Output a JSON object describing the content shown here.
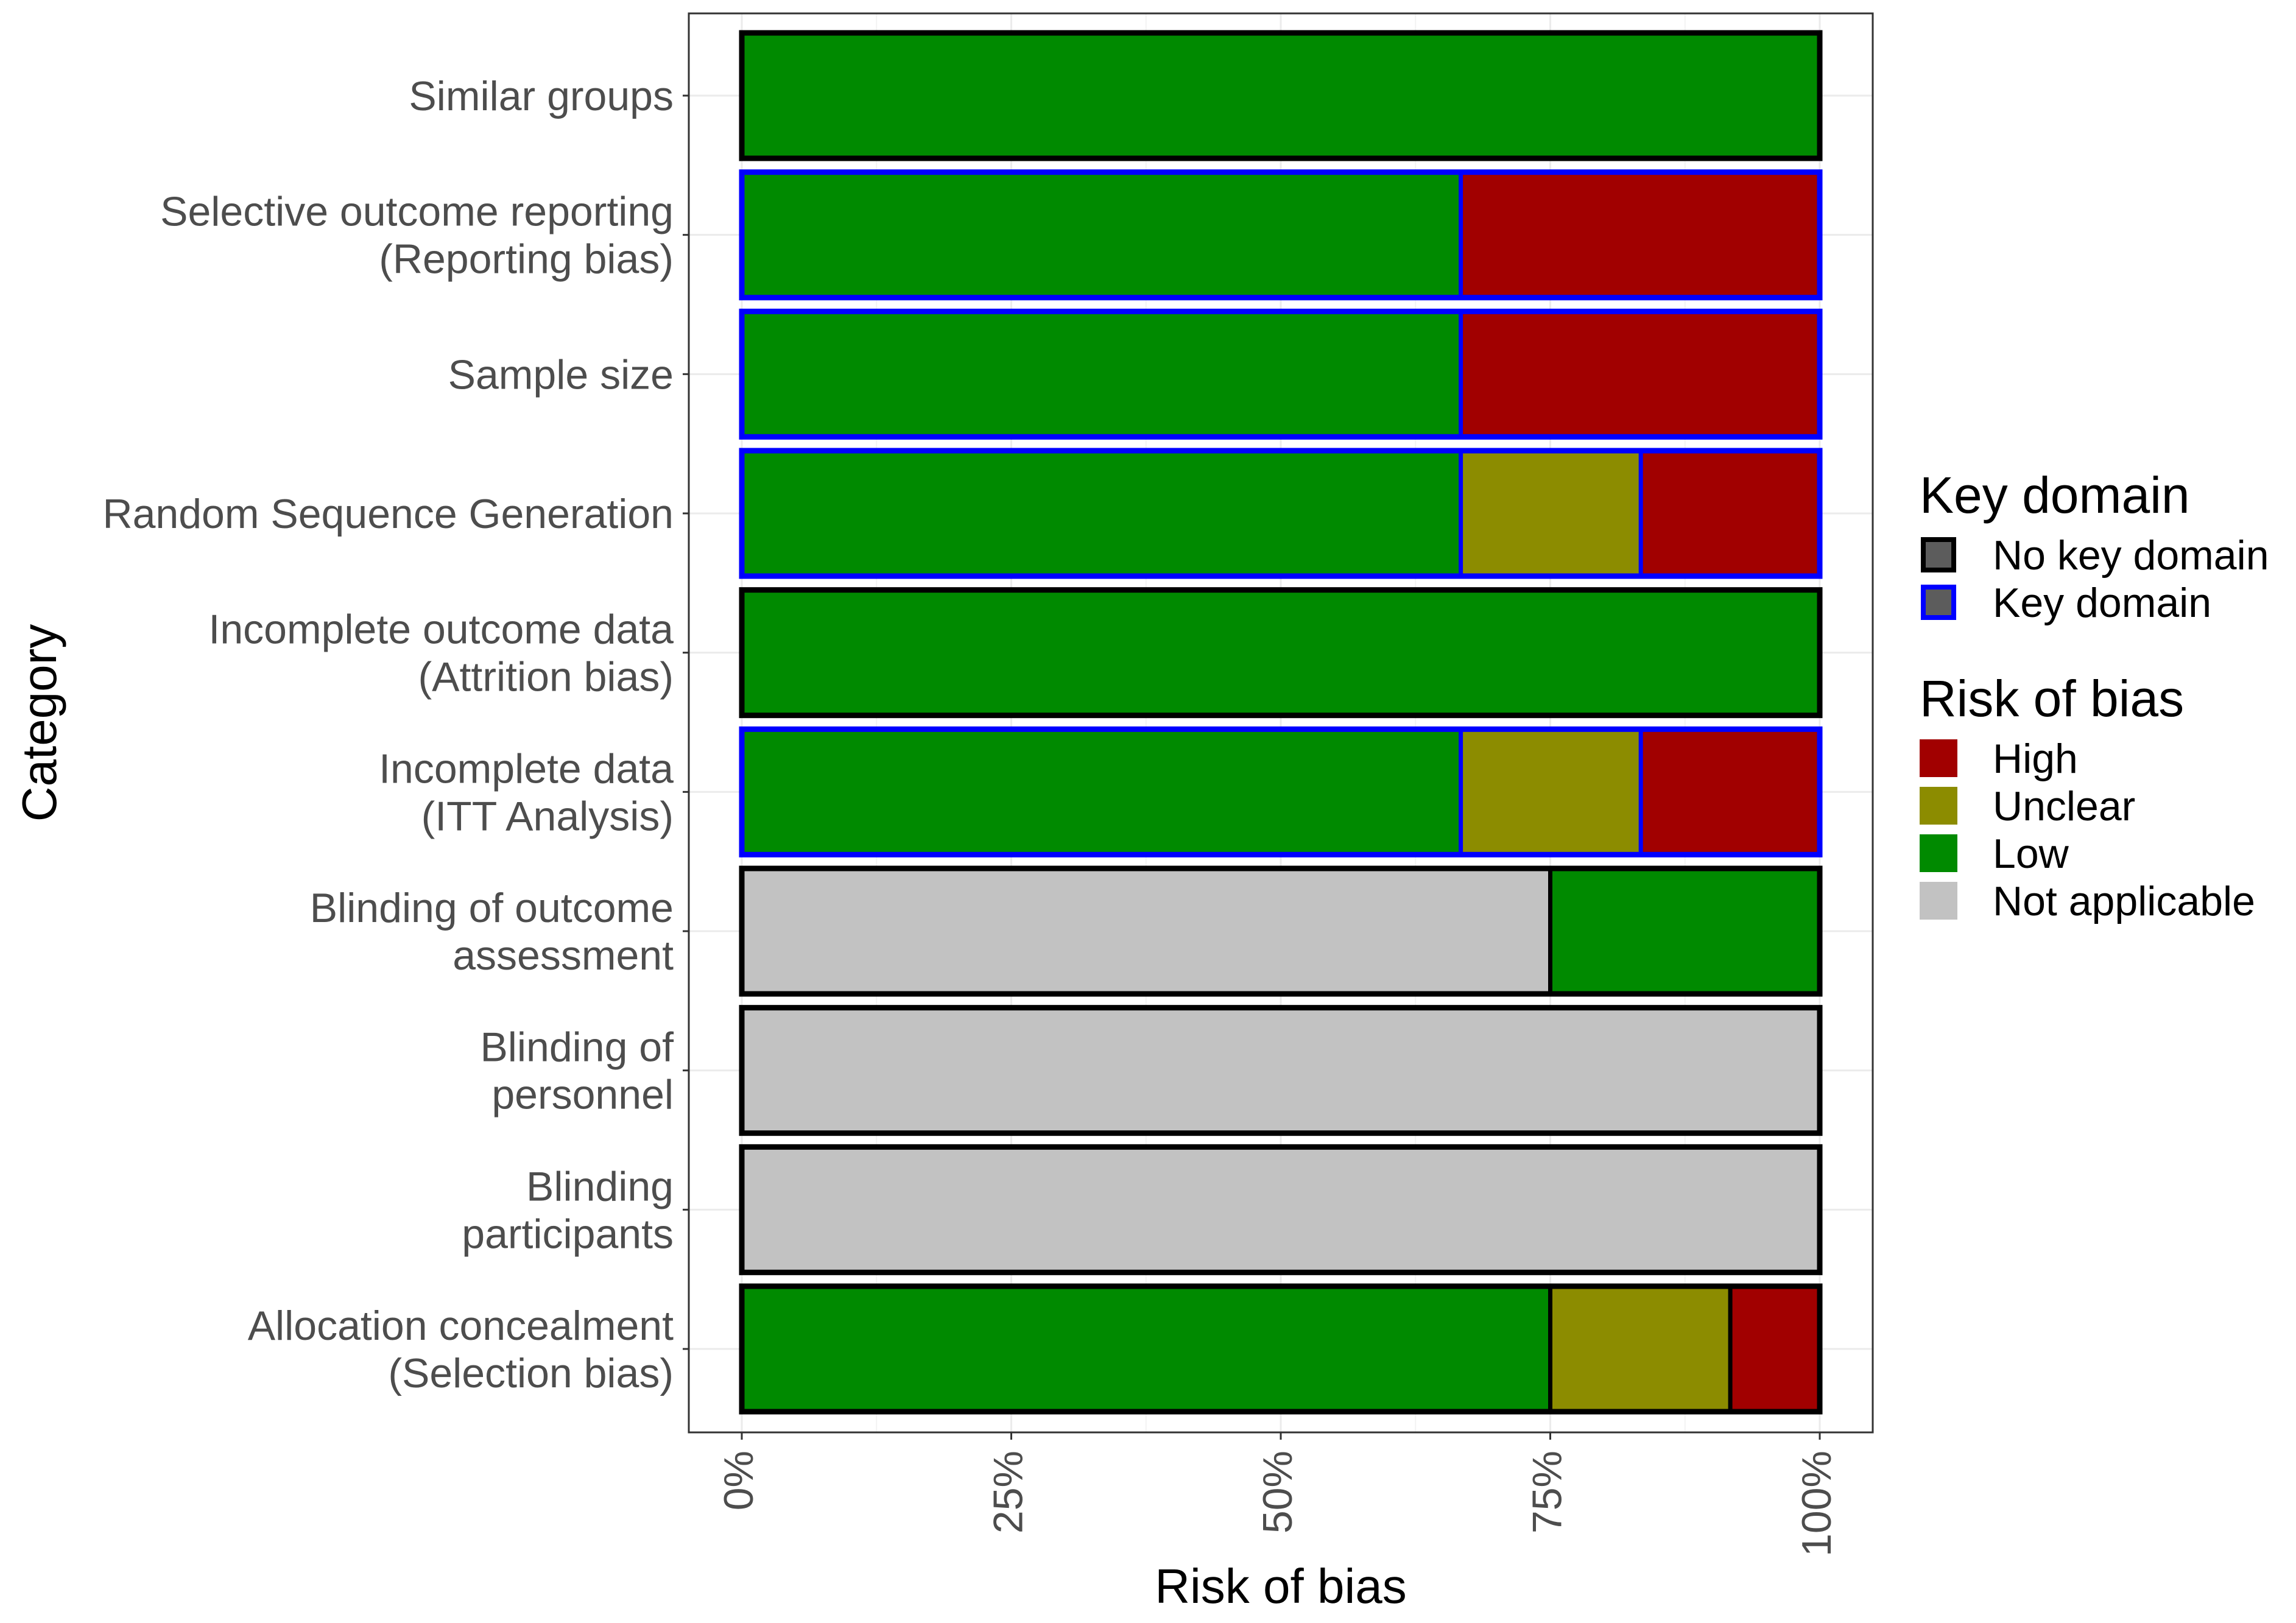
{
  "chart_data": {
    "type": "bar",
    "orientation": "horizontal",
    "stacked": true,
    "xlabel": "Risk of bias",
    "ylabel": "Category",
    "xlim": [
      0,
      100
    ],
    "x_ticks": [
      0,
      25,
      50,
      75,
      100
    ],
    "x_tick_labels": [
      "0%",
      "25%",
      "50%",
      "75%",
      "100%"
    ],
    "grid": true,
    "colors": {
      "High": "#a10000",
      "Unclear": "#8c8c00",
      "Low": "#008a00",
      "Not applicable": "#c2c2c2",
      "No key domain": "#000000",
      "Key domain": "#0000ff",
      "legend_key_fill": "#5c5c5c"
    },
    "categories": [
      {
        "label": [
          "Similar groups"
        ],
        "key": false,
        "segments": [
          {
            "level": "Low",
            "value": 100
          }
        ]
      },
      {
        "label": [
          "Selective outcome reporting",
          "(Reporting bias)"
        ],
        "key": true,
        "segments": [
          {
            "level": "Low",
            "value": 66.7
          },
          {
            "level": "High",
            "value": 33.3
          }
        ]
      },
      {
        "label": [
          "Sample size"
        ],
        "key": true,
        "segments": [
          {
            "level": "Low",
            "value": 66.7
          },
          {
            "level": "High",
            "value": 33.3
          }
        ]
      },
      {
        "label": [
          "Random Sequence Generation"
        ],
        "key": true,
        "segments": [
          {
            "level": "Low",
            "value": 66.7
          },
          {
            "level": "Unclear",
            "value": 16.7
          },
          {
            "level": "High",
            "value": 16.6
          }
        ]
      },
      {
        "label": [
          "Incomplete outcome data",
          "(Attrition bias)"
        ],
        "key": false,
        "segments": [
          {
            "level": "Low",
            "value": 100
          }
        ]
      },
      {
        "label": [
          "Incomplete data",
          "(ITT Analysis)"
        ],
        "key": true,
        "segments": [
          {
            "level": "Low",
            "value": 66.7
          },
          {
            "level": "Unclear",
            "value": 16.7
          },
          {
            "level": "High",
            "value": 16.6
          }
        ]
      },
      {
        "label": [
          "Blinding of outcome",
          "assessment"
        ],
        "key": false,
        "segments": [
          {
            "level": "Not applicable",
            "value": 75
          },
          {
            "level": "Low",
            "value": 25
          }
        ]
      },
      {
        "label": [
          "Blinding of",
          "personnel"
        ],
        "key": false,
        "segments": [
          {
            "level": "Not applicable",
            "value": 100
          }
        ]
      },
      {
        "label": [
          "Blinding",
          "participants"
        ],
        "key": false,
        "segments": [
          {
            "level": "Not applicable",
            "value": 100
          }
        ]
      },
      {
        "label": [
          "Allocation concealment",
          "(Selection bias)"
        ],
        "key": false,
        "segments": [
          {
            "level": "Low",
            "value": 75
          },
          {
            "level": "Unclear",
            "value": 16.7
          },
          {
            "level": "High",
            "value": 8.3
          }
        ]
      }
    ],
    "legends": [
      {
        "title": "Key domain",
        "entries": [
          {
            "label": "No key domain",
            "outline": "No key domain"
          },
          {
            "label": "Key domain",
            "outline": "Key domain"
          }
        ]
      },
      {
        "title": "Risk of bias",
        "entries": [
          {
            "label": "High",
            "color": "High"
          },
          {
            "label": "Unclear",
            "color": "Unclear"
          },
          {
            "label": "Low",
            "color": "Low"
          },
          {
            "label": "Not applicable",
            "color": "Not applicable"
          }
        ]
      }
    ]
  }
}
